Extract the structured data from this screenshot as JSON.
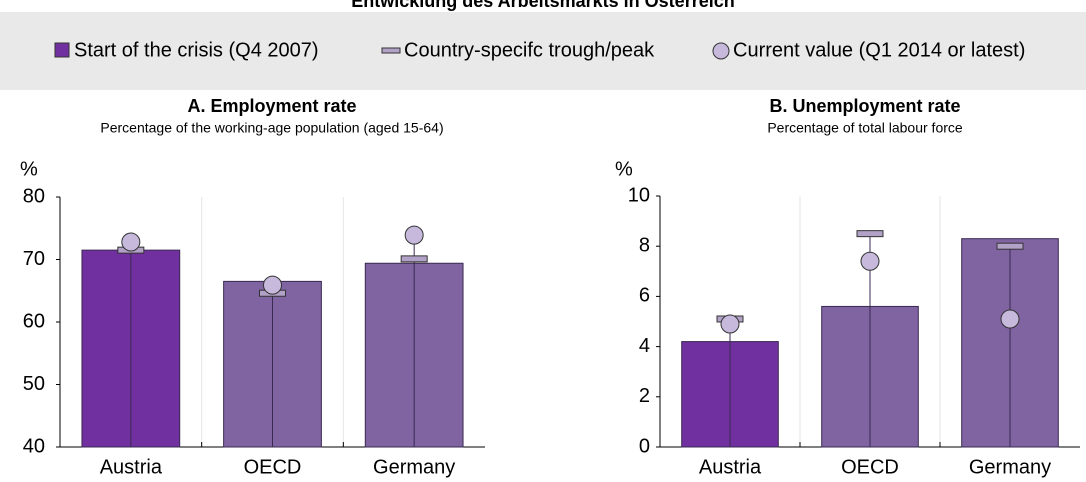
{
  "title": "Entwicklung des Arbeitsmarkts in Österreich",
  "chart_data": [
    {
      "type": "bar",
      "title": "A. Employment rate",
      "subtitle": "Percentage of the working-age population (aged 15-64)",
      "y_label": "%",
      "categories": [
        "Austria",
        "OECD",
        "Germany"
      ],
      "ylim": [
        40,
        80
      ],
      "yticks": [
        40,
        50,
        60,
        70,
        80
      ],
      "grid": true,
      "highlight_color": "#7030a0",
      "series": [
        {
          "name": "Start of the crisis (Q4 2007)",
          "color": "#8064a2",
          "values": [
            71.5,
            66.5,
            69.4
          ]
        },
        {
          "name": "Country-specifc trough/peak",
          "color": "#b3a2c7",
          "values": [
            71.5,
            64.6,
            70.1
          ]
        },
        {
          "name": "Current value (Q1 2014 or latest)",
          "color": "#c6b9dc",
          "values": [
            72.8,
            65.9,
            73.9
          ]
        }
      ]
    },
    {
      "type": "bar",
      "title": "B. Unemployment rate",
      "subtitle": "Percentage of total labour force",
      "y_label": "%",
      "categories": [
        "Austria",
        "OECD",
        "Germany"
      ],
      "ylim": [
        0,
        10
      ],
      "yticks": [
        0,
        2,
        4,
        6,
        8,
        10
      ],
      "grid": true,
      "highlight_color": "#7030a0",
      "series": [
        {
          "color": "#8064a2",
          "values": [
            4.2,
            5.6,
            8.3
          ]
        },
        {
          "color": "#b3a2c7",
          "values": [
            5.1,
            8.5,
            8.0
          ]
        },
        {
          "color": "#c6b9dc",
          "values": [
            4.9,
            7.4,
            5.1
          ]
        }
      ]
    }
  ]
}
